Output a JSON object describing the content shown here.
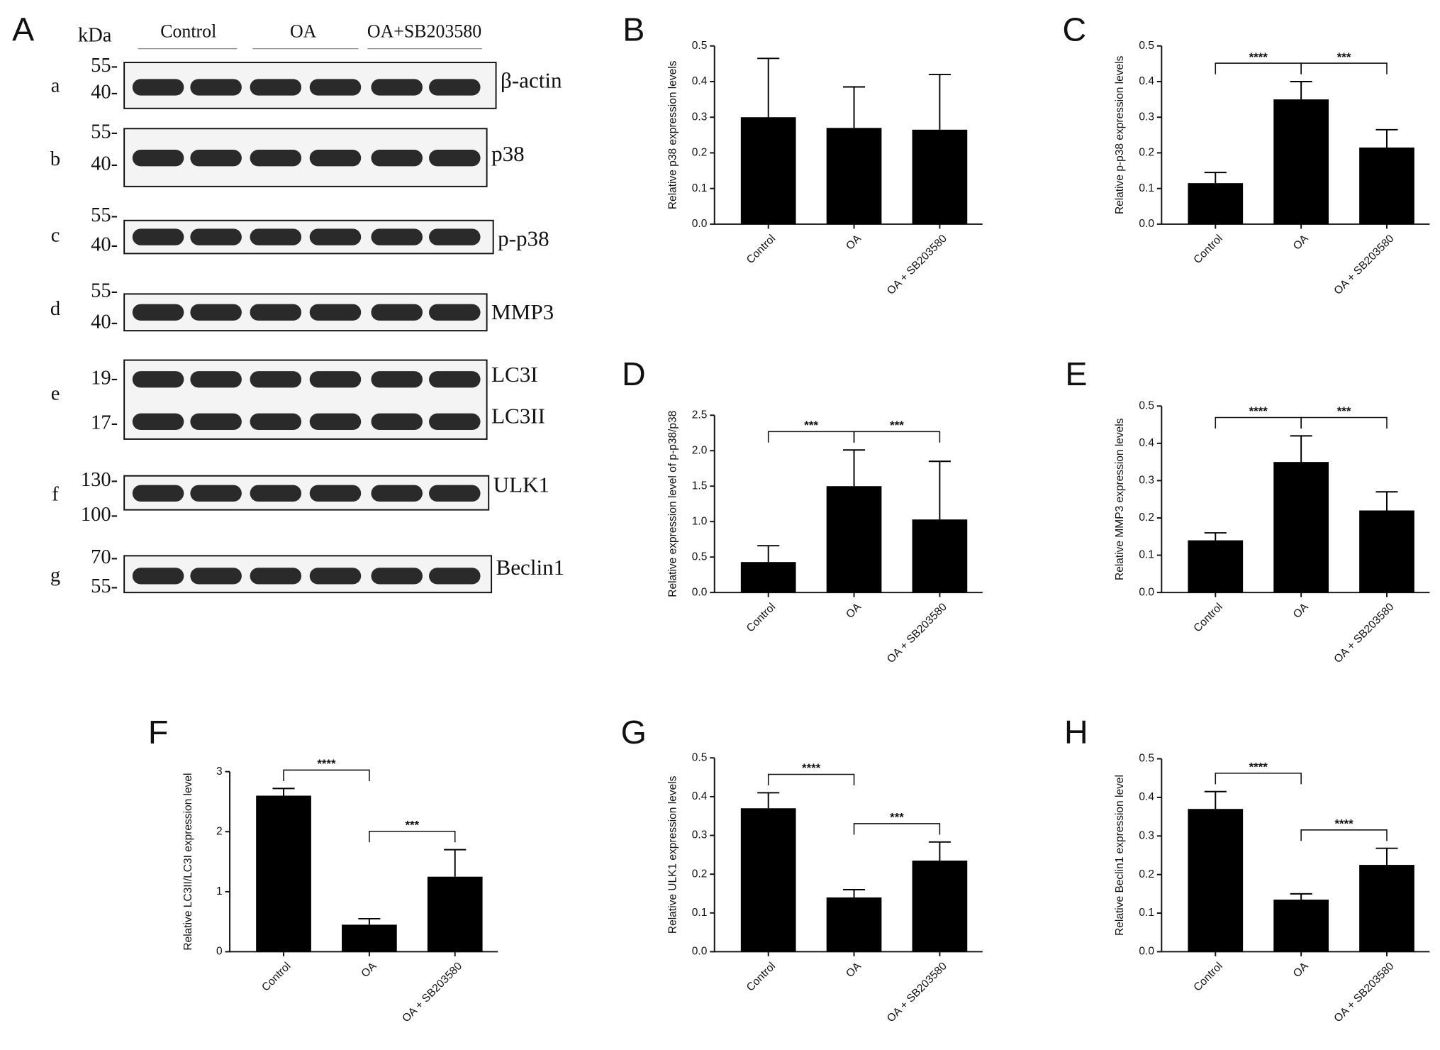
{
  "blot": {
    "label": "A",
    "unit": "kDa",
    "groups": [
      "Control",
      "OA",
      "OA+SB203580"
    ],
    "rows": [
      {
        "letter": "a",
        "markers": [
          "55-",
          "40-"
        ],
        "proteins": [
          "β-actin"
        ]
      },
      {
        "letter": "b",
        "markers": [
          "55-",
          "40-"
        ],
        "proteins": [
          "p38"
        ]
      },
      {
        "letter": "c",
        "markers": [
          "55-",
          "40-"
        ],
        "proteins": [
          "p-p38"
        ]
      },
      {
        "letter": "d",
        "markers": [
          "55-",
          "40-"
        ],
        "proteins": [
          "MMP3"
        ]
      },
      {
        "letter": "e",
        "markers": [
          "19-",
          "17-"
        ],
        "proteins": [
          "LC3I",
          "LC3II"
        ]
      },
      {
        "letter": "f",
        "markers": [
          "130-",
          "100-"
        ],
        "proteins": [
          "ULK1"
        ]
      },
      {
        "letter": "g",
        "markers": [
          "70-",
          "55-"
        ],
        "proteins": [
          "Beclin1"
        ]
      }
    ]
  },
  "chart_data": [
    {
      "type": "bar",
      "panel": "B",
      "ylabel": "Relative p38 expression levels",
      "color": "#000000",
      "categories": [
        "Control",
        "OA",
        "OA + SB203580"
      ],
      "values": [
        0.3,
        0.27,
        0.265
      ],
      "errors": [
        0.165,
        0.115,
        0.155
      ],
      "ylim": [
        0,
        0.5
      ],
      "yticks": [
        {
          "value": 0,
          "label": "0.0"
        },
        0.1,
        0.2,
        0.3,
        0.4,
        0.5
      ],
      "annotations": []
    },
    {
      "type": "bar",
      "panel": "C",
      "ylabel": "Relative p-p38 expression levels",
      "color": "#000000",
      "categories": [
        "Control",
        "OA",
        "OA + SB203580"
      ],
      "values": [
        0.115,
        0.35,
        0.215
      ],
      "errors": [
        0.03,
        0.05,
        0.05
      ],
      "ylim": [
        0,
        0.5
      ],
      "yticks": [
        {
          "value": 0,
          "label": "0.0"
        },
        0.1,
        0.2,
        0.3,
        0.4,
        0.5
      ],
      "annotations": [
        {
          "label": "****",
          "between": [
            "Control",
            "OA"
          ]
        },
        {
          "label": "***",
          "between": [
            "OA",
            "OA + SB203580"
          ]
        }
      ]
    },
    {
      "type": "bar",
      "panel": "D",
      "ylabel": "Relative expression level of p-p38/p38",
      "color": "#000000",
      "categories": [
        "Control",
        "OA",
        "OA + SB203580"
      ],
      "values": [
        0.43,
        1.5,
        1.03
      ],
      "errors": [
        0.23,
        0.51,
        0.82
      ],
      "ylim": [
        0,
        2.5
      ],
      "yticks": [
        {
          "value": 0,
          "label": "0.0"
        },
        0.5,
        {
          "value": 1,
          "label": "1.0"
        },
        1.5,
        {
          "value": 2,
          "label": "2.0"
        },
        2.5
      ],
      "annotations": [
        {
          "label": "***",
          "between": [
            "Control",
            "OA"
          ]
        },
        {
          "label": "***",
          "between": [
            "OA",
            "OA + SB203580"
          ]
        }
      ]
    },
    {
      "type": "bar",
      "panel": "E",
      "ylabel": "Relative MMP3 expression levels",
      "color": "#000000",
      "categories": [
        "Control",
        "OA",
        "OA + SB203580"
      ],
      "values": [
        0.14,
        0.35,
        0.22
      ],
      "errors": [
        0.02,
        0.07,
        0.05
      ],
      "ylim": [
        0,
        0.5
      ],
      "yticks": [
        {
          "value": 0,
          "label": "0.0"
        },
        0.1,
        0.2,
        0.3,
        0.4,
        0.5
      ],
      "annotations": [
        {
          "label": "****",
          "between": [
            "Control",
            "OA"
          ]
        },
        {
          "label": "***",
          "between": [
            "OA",
            "OA + SB203580"
          ]
        }
      ]
    },
    {
      "type": "bar",
      "panel": "F",
      "ylabel": "Relative LC3II/LC3I expression level",
      "color": "#000000",
      "categories": [
        "Control",
        "OA",
        "OA + SB203580"
      ],
      "values": [
        2.6,
        0.45,
        1.25
      ],
      "errors": [
        0.12,
        0.1,
        0.45
      ],
      "ylim": [
        0,
        3
      ],
      "yticks": [
        0,
        1,
        2,
        3
      ],
      "annotations": [
        {
          "label": "****",
          "between": [
            "Control",
            "OA"
          ]
        },
        {
          "label": "***",
          "between": [
            "OA",
            "OA + SB203580"
          ]
        }
      ]
    },
    {
      "type": "bar",
      "panel": "G",
      "ylabel": "Relative ULK1 expression levels",
      "color": "#000000",
      "categories": [
        "Control",
        "OA",
        "OA + SB203580"
      ],
      "values": [
        0.37,
        0.14,
        0.235
      ],
      "errors": [
        0.04,
        0.02,
        0.048
      ],
      "ylim": [
        0,
        0.5
      ],
      "yticks": [
        {
          "value": 0,
          "label": "0.0"
        },
        0.1,
        0.2,
        0.3,
        0.4,
        0.5
      ],
      "annotations": [
        {
          "label": "****",
          "between": [
            "Control",
            "OA"
          ]
        },
        {
          "label": "***",
          "between": [
            "OA",
            "OA + SB203580"
          ]
        }
      ]
    },
    {
      "type": "bar",
      "panel": "H",
      "ylabel": "Relative Beclin1 expression level",
      "color": "#000000",
      "categories": [
        "Control",
        "OA",
        "OA + SB203580"
      ],
      "values": [
        0.37,
        0.135,
        0.225
      ],
      "errors": [
        0.045,
        0.015,
        0.043
      ],
      "ylim": [
        0,
        0.5
      ],
      "yticks": [
        {
          "value": 0,
          "label": "0.0"
        },
        0.1,
        0.2,
        0.3,
        0.4,
        0.5
      ],
      "annotations": [
        {
          "label": "****",
          "between": [
            "Control",
            "OA"
          ]
        },
        {
          "label": "****",
          "between": [
            "OA",
            "OA + SB203580"
          ]
        }
      ]
    }
  ]
}
